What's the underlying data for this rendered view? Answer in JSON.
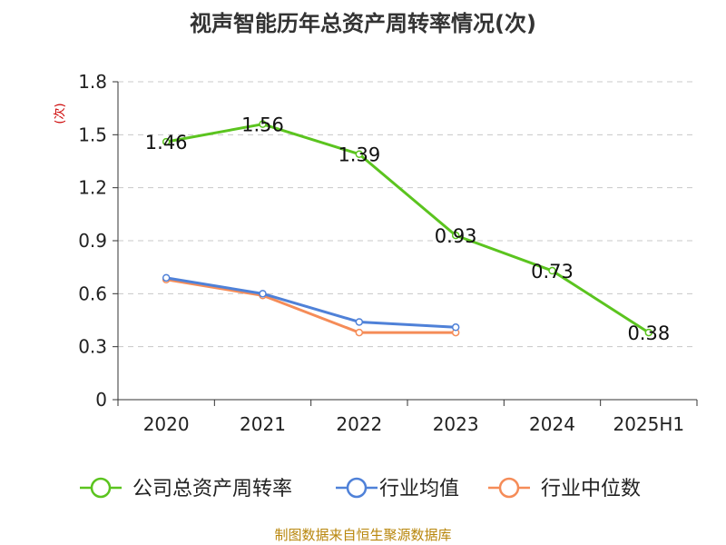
{
  "title": "视声智能历年总资产周转率情况(次)",
  "source": "制图数据来自恒生聚源数据库",
  "chart_data": {
    "type": "line",
    "title": "视声智能历年总资产周转率情况(次)",
    "ylabel": "(次)",
    "xlabel": "",
    "categories": [
      "2020",
      "2021",
      "2022",
      "2023",
      "2024",
      "2025H1"
    ],
    "ylim": [
      0,
      1.8
    ],
    "yticks": [
      0,
      0.3,
      0.6,
      0.9,
      1.2,
      1.5,
      1.8
    ],
    "ytick_labels": [
      "0",
      "0.3",
      "0.6",
      "0.9",
      "1.2",
      "1.5",
      "1.8"
    ],
    "grid": true,
    "legend_position": "bottom",
    "series": [
      {
        "name": "公司总资产周转率",
        "color": "#5bc41f",
        "values": [
          1.46,
          1.56,
          1.39,
          0.93,
          0.73,
          0.38
        ],
        "labels": [
          "1.46",
          "1.56",
          "1.39",
          "0.93",
          "0.73",
          "0.38"
        ]
      },
      {
        "name": "行业均值",
        "color": "#4f81d8",
        "values": [
          0.69,
          0.6,
          0.44,
          0.41,
          null,
          null
        ]
      },
      {
        "name": "行业中位数",
        "color": "#f58c58",
        "values": [
          0.68,
          0.59,
          0.38,
          0.38,
          null,
          null
        ]
      }
    ]
  }
}
